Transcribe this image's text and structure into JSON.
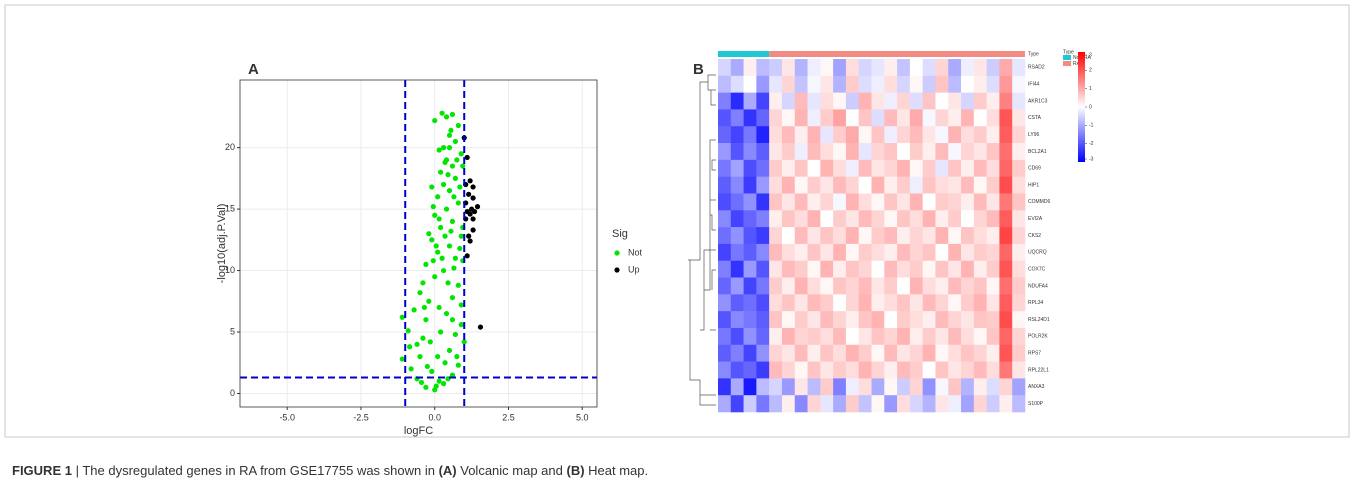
{
  "caption": [
    {
      "text": "FIGURE 1",
      "bold": true
    },
    {
      "text": " | The dysregulated genes in RA from GSE17755 was shown in ",
      "bold": false
    },
    {
      "text": "(A)",
      "bold": true
    },
    {
      "text": " Volcanic map and ",
      "bold": false
    },
    {
      "text": "(B)",
      "bold": true
    },
    {
      "text": " Heat map.",
      "bold": false
    }
  ],
  "chart_data": [
    {
      "type": "scatter",
      "panel": "A",
      "xlabel": "logFC",
      "ylabel": "-log10(adj.P.Val)",
      "xlim": [
        -6.6,
        5.5
      ],
      "ylim": [
        -1.1,
        25.5
      ],
      "xticks": [
        {
          "value": -5,
          "label": "-5.0"
        },
        {
          "value": -2.5,
          "label": "-2.5"
        },
        {
          "value": 0,
          "label": "0.0"
        },
        {
          "value": 2.5,
          "label": "2.5"
        },
        {
          "value": 5,
          "label": "5.0"
        }
      ],
      "yticks": [
        0,
        5,
        10,
        15,
        20
      ],
      "grid": true,
      "vlines": [
        -1,
        1
      ],
      "hline": 1.3,
      "threshold_color": "#0000cc",
      "legend_title": "Sig",
      "series": [
        {
          "name": "Not",
          "color": "#00e600",
          "x": [
            0,
            -0.3,
            0.3,
            -0.6,
            0.6,
            -0.8,
            0.8,
            -0.5,
            0.5,
            -0.4,
            0.7,
            -0.9,
            0.9,
            -0.3,
            0.4,
            -0.2,
            0.6,
            -0.5,
            0.8,
            0,
            0.3,
            -0.3,
            0.7,
            0.1,
            0.5,
            -0.1,
            0.9,
            0.2,
            0.6,
            0,
            0.4,
            0.8,
            0.1,
            0.5,
            0.3,
            0.7,
            0.2,
            0.6,
            0.4,
            0.9,
            0.3,
            0.7,
            0.5,
            0.8,
            0.25,
            0.4,
            0.6,
            0,
            0.55,
            -0.1,
            -0.2,
            -0.4,
            -0.7,
            -1.1,
            -1.1,
            0.95,
            0.95,
            1.0,
            -0.85,
            0.2,
            0.1,
            -0.1,
            0.15,
            0.35,
            -0.25,
            0.45,
            0.15,
            0.65,
            0.05,
            0.85,
            0.35,
            0.75,
            -0.05,
            0.55,
            0.25,
            0.9,
            -0.6,
            -0.15,
            0.75,
            0.45,
            -0.45,
            0.05,
            0.6,
            -0.35,
            0.15,
            0.45,
            0.65,
            0.35,
            0.95,
            0.15,
            0.5,
            0.85,
            -0.05
          ],
          "y": [
            0.3,
            0.5,
            0.8,
            1.2,
            1.5,
            2,
            2.3,
            3,
            3.5,
            4.5,
            4.8,
            5.1,
            5.6,
            6,
            6.5,
            7.5,
            7.8,
            8.2,
            8.8,
            9.5,
            10,
            10.5,
            11,
            11.5,
            12,
            12.5,
            12.8,
            13.5,
            14,
            14.5,
            15,
            15.5,
            16,
            16.5,
            17,
            17.5,
            18,
            18.5,
            19,
            19.5,
            20,
            20.5,
            21,
            21.8,
            22.8,
            22.5,
            22.7,
            22.2,
            21.4,
            16.8,
            13,
            9,
            6.8,
            2.8,
            6.2,
            13.5,
            10.8,
            4.2,
            3.8,
            5,
            3,
            1.8,
            1,
            2.5,
            2.2,
            9,
            7,
            10.2,
            12,
            16.8,
            18.8,
            19,
            15.2,
            13.2,
            11,
            7.2,
            4,
            4.2,
            3,
            1.2,
            0.9,
            0.6,
            6,
            7,
            14.2,
            17.8,
            16,
            12.8,
            18.5,
            19.8,
            20,
            11.8,
            10.8
          ]
        },
        {
          "name": "Up",
          "color": "#000000",
          "x": [
            1.1,
            1.0,
            1.05,
            1.2,
            1.3,
            1.15,
            1.3,
            1.05,
            1.25,
            1.45,
            1.1,
            1.2,
            1.35,
            1.05,
            1.3,
            1.15,
            1.2,
            1.1,
            1.55,
            1.3
          ],
          "y": [
            19.2,
            20.8,
            17,
            17.3,
            16.8,
            16.2,
            15.9,
            15.5,
            15,
            15.2,
            14.8,
            14.6,
            14.8,
            14.2,
            13.3,
            12.8,
            12.4,
            11.2,
            5.4,
            14.2
          ]
        }
      ]
    },
    {
      "type": "heatmap",
      "panel": "B",
      "annotation_label": "Type",
      "legend_title": "Type",
      "groups": [
        {
          "name": "Non-RA",
          "color": "#20c8d2",
          "count": 4
        },
        {
          "name": "RA",
          "color": "#f28b82",
          "count": 20
        }
      ],
      "colorbar": {
        "range": [
          -3,
          3
        ],
        "colors": [
          "#0000ff",
          "#ffffff",
          "#ff0000"
        ],
        "ticks": [
          3,
          2,
          1,
          0,
          -1,
          -2,
          -3
        ]
      },
      "rows": [
        "RSAD2",
        "IFI44",
        "AKR1C3",
        "CSTA",
        "LY96",
        "BCL2A1",
        "CD69",
        "HIP1",
        "COMMD6",
        "EVI2A",
        "CKS2",
        "UQCRQ",
        "COX7C",
        "NDUFA4",
        "RPL34",
        "RSL24D1",
        "POLR2K",
        "RPS7",
        "RPL22L1",
        "ANXA3",
        "S100P"
      ],
      "values": [
        [
          -0.5,
          -1.0,
          0.2,
          -0.8,
          -0.6,
          0.3,
          -0.9,
          -0.2,
          0.1,
          -1.1,
          0.4,
          -0.5,
          -0.3,
          0.2,
          -0.7,
          0.0,
          -0.4,
          0.5,
          -1.0,
          -0.2,
          0.3,
          -0.6,
          1.0,
          -0.3
        ],
        [
          -0.8,
          -0.4,
          0.0,
          -1.2,
          -0.3,
          0.5,
          -0.7,
          -0.1,
          0.3,
          -0.9,
          0.6,
          -0.4,
          -0.2,
          0.4,
          -0.5,
          0.1,
          -0.6,
          0.7,
          -0.8,
          0.0,
          0.2,
          -0.4,
          1.2,
          -0.1
        ],
        [
          -1.5,
          -2.5,
          -1.0,
          -2.2,
          0.2,
          -0.5,
          0.8,
          -0.3,
          0.4,
          0.1,
          -0.6,
          0.9,
          0.3,
          -0.2,
          0.5,
          -0.4,
          0.7,
          0.0,
          0.3,
          -0.5,
          0.6,
          0.2,
          1.5,
          -0.3
        ],
        [
          -2.0,
          -1.5,
          -2.4,
          -1.8,
          0.5,
          0.1,
          0.9,
          -0.2,
          0.6,
          1.1,
          0.0,
          0.7,
          -0.4,
          0.8,
          0.3,
          1.0,
          -0.1,
          0.5,
          0.2,
          0.9,
          0.0,
          0.4,
          2.0,
          0.3
        ],
        [
          -1.8,
          -2.2,
          -1.6,
          -2.6,
          0.4,
          0.8,
          0.2,
          0.9,
          -0.3,
          0.6,
          1.0,
          0.1,
          0.7,
          -0.2,
          0.5,
          0.8,
          0.3,
          -0.1,
          0.9,
          0.4,
          0.6,
          0.2,
          1.9,
          0.5
        ],
        [
          -1.2,
          -2.0,
          -1.4,
          -1.9,
          0.3,
          0.6,
          -0.2,
          0.8,
          0.4,
          0.1,
          0.9,
          -0.3,
          0.5,
          0.7,
          0.0,
          0.6,
          0.2,
          0.8,
          -0.1,
          0.5,
          0.3,
          0.7,
          1.7,
          0.2
        ],
        [
          -1.6,
          -1.1,
          -2.1,
          -1.7,
          0.6,
          0.2,
          0.7,
          0.0,
          0.9,
          0.4,
          -0.2,
          0.8,
          0.3,
          0.5,
          0.9,
          0.1,
          0.6,
          -0.3,
          0.7,
          0.2,
          0.8,
          0.4,
          1.8,
          0.6
        ],
        [
          -1.9,
          -1.4,
          -2.3,
          -1.2,
          0.4,
          0.9,
          0.1,
          0.6,
          0.3,
          0.8,
          0.5,
          0.0,
          0.9,
          0.2,
          0.6,
          -0.2,
          0.7,
          0.4,
          0.3,
          0.8,
          0.1,
          0.6,
          2.1,
          0.4
        ],
        [
          -2.1,
          -1.7,
          -1.3,
          -2.4,
          0.7,
          0.3,
          0.8,
          0.2,
          0.5,
          -0.1,
          0.9,
          0.4,
          0.1,
          0.7,
          0.3,
          0.9,
          0.0,
          0.6,
          0.5,
          0.2,
          0.8,
          0.3,
          1.6,
          0.7
        ],
        [
          -1.4,
          -2.2,
          -1.8,
          -1.5,
          0.2,
          0.7,
          0.4,
          0.9,
          0.0,
          0.6,
          0.3,
          0.8,
          0.5,
          0.1,
          0.7,
          0.4,
          0.9,
          0.2,
          0.6,
          0.0,
          0.5,
          0.8,
          1.9,
          0.3
        ],
        [
          -1.7,
          -1.3,
          -2.0,
          -2.3,
          0.5,
          0.0,
          0.8,
          0.3,
          0.7,
          0.4,
          0.9,
          0.1,
          0.6,
          0.8,
          0.2,
          0.5,
          0.3,
          0.9,
          0.1,
          0.7,
          0.4,
          0.2,
          2.2,
          0.5
        ],
        [
          -2.2,
          -1.6,
          -1.9,
          -1.4,
          0.8,
          0.4,
          0.2,
          0.7,
          0.3,
          0.9,
          0.1,
          0.6,
          0.4,
          0.2,
          0.8,
          0.5,
          0.7,
          0.0,
          0.9,
          0.3,
          0.6,
          0.5,
          1.8,
          0.2
        ],
        [
          -1.5,
          -2.4,
          -1.2,
          -2.0,
          0.3,
          0.8,
          0.6,
          0.1,
          0.9,
          0.2,
          0.7,
          0.5,
          0.0,
          0.8,
          0.4,
          0.6,
          0.1,
          0.7,
          0.3,
          0.9,
          0.2,
          0.6,
          2.0,
          0.4
        ],
        [
          -1.8,
          -1.2,
          -2.2,
          -1.6,
          0.6,
          0.2,
          0.9,
          0.4,
          0.1,
          0.7,
          0.5,
          0.8,
          0.3,
          0.6,
          0.0,
          0.9,
          0.4,
          0.2,
          0.8,
          0.5,
          0.7,
          0.1,
          1.7,
          0.6
        ],
        [
          -1.3,
          -1.9,
          -1.7,
          -2.1,
          0.4,
          0.7,
          0.3,
          0.8,
          0.6,
          0.0,
          0.5,
          0.9,
          0.2,
          0.4,
          0.7,
          0.3,
          0.8,
          0.5,
          0.1,
          0.6,
          0.9,
          0.3,
          1.9,
          0.5
        ],
        [
          -2.0,
          -1.4,
          -1.6,
          -1.9,
          0.7,
          0.1,
          0.6,
          0.3,
          0.8,
          0.5,
          0.2,
          0.7,
          0.9,
          0.0,
          0.6,
          0.4,
          0.2,
          0.8,
          0.5,
          0.3,
          0.7,
          0.6,
          2.1,
          0.1
        ],
        [
          -1.6,
          -2.1,
          -1.3,
          -1.8,
          0.2,
          0.9,
          0.5,
          0.6,
          0.4,
          0.8,
          0.0,
          0.3,
          0.7,
          0.5,
          0.9,
          0.2,
          0.6,
          0.3,
          0.8,
          0.4,
          0.1,
          0.7,
          1.8,
          0.5
        ],
        [
          -1.9,
          -1.5,
          -2.2,
          -1.3,
          0.5,
          0.3,
          0.8,
          0.2,
          0.7,
          0.4,
          0.9,
          0.6,
          0.1,
          0.8,
          0.3,
          0.5,
          0.9,
          0.1,
          0.4,
          0.7,
          0.5,
          0.2,
          2.0,
          0.6
        ],
        [
          -1.4,
          -2.0,
          -1.8,
          -2.3,
          0.8,
          0.5,
          0.1,
          0.7,
          0.3,
          0.6,
          0.4,
          0.9,
          0.5,
          0.2,
          0.8,
          0.6,
          0.0,
          0.7,
          0.3,
          0.5,
          0.8,
          0.4,
          1.6,
          0.3
        ],
        [
          -2.4,
          -1.0,
          -2.7,
          -0.8,
          -0.5,
          -1.2,
          0.3,
          -0.8,
          0.6,
          -1.5,
          -0.2,
          0.4,
          -1.0,
          0.1,
          -0.6,
          0.5,
          -1.3,
          -0.1,
          0.7,
          -0.9,
          0.2,
          -0.4,
          0.5,
          -1.1
        ],
        [
          -1.0,
          -2.2,
          -0.6,
          -1.6,
          -0.8,
          0.2,
          -1.4,
          0.5,
          -0.3,
          -1.0,
          0.6,
          -0.7,
          0.1,
          -1.2,
          0.4,
          -0.5,
          -0.9,
          0.3,
          -0.2,
          -1.1,
          0.5,
          -0.6,
          0.2,
          -0.8
        ]
      ]
    }
  ]
}
